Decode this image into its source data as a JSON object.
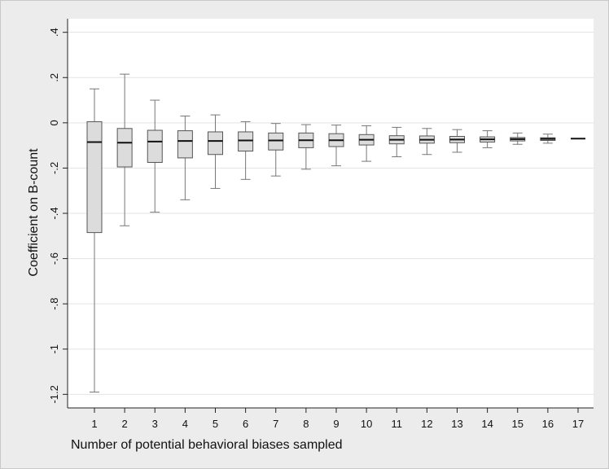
{
  "chart_data": {
    "type": "box",
    "xlabel": "Number of potential behavioral biases sampled",
    "ylabel": "Coefficient on B-count",
    "ylim": [
      -1.26,
      0.46
    ],
    "yticks": [
      {
        "value": 0.4,
        "label": ".4"
      },
      {
        "value": 0.2,
        "label": ".2"
      },
      {
        "value": 0,
        "label": "0"
      },
      {
        "value": -0.2,
        "label": "-.2"
      },
      {
        "value": -0.4,
        "label": "-.4"
      },
      {
        "value": -0.6,
        "label": "-.6"
      },
      {
        "value": -0.8,
        "label": "-.8"
      },
      {
        "value": -1,
        "label": "-1"
      },
      {
        "value": -1.2,
        "label": "-1.2"
      }
    ],
    "grid": true,
    "categories": [
      "1",
      "2",
      "3",
      "4",
      "5",
      "6",
      "7",
      "8",
      "9",
      "10",
      "11",
      "12",
      "13",
      "14",
      "15",
      "16",
      "17"
    ],
    "boxes": [
      {
        "x": "1",
        "whisker_low": -1.19,
        "q1": -0.485,
        "median": -0.085,
        "q3": 0.005,
        "whisker_high": 0.15
      },
      {
        "x": "2",
        "whisker_low": -0.455,
        "q1": -0.195,
        "median": -0.088,
        "q3": -0.025,
        "whisker_high": 0.215
      },
      {
        "x": "3",
        "whisker_low": -0.395,
        "q1": -0.175,
        "median": -0.083,
        "q3": -0.033,
        "whisker_high": 0.1
      },
      {
        "x": "4",
        "whisker_low": -0.34,
        "q1": -0.155,
        "median": -0.08,
        "q3": -0.035,
        "whisker_high": 0.03
      },
      {
        "x": "5",
        "whisker_low": -0.29,
        "q1": -0.14,
        "median": -0.08,
        "q3": -0.04,
        "whisker_high": 0.035
      },
      {
        "x": "6",
        "whisker_low": -0.25,
        "q1": -0.125,
        "median": -0.078,
        "q3": -0.04,
        "whisker_high": 0.005
      },
      {
        "x": "7",
        "whisker_low": -0.235,
        "q1": -0.12,
        "median": -0.078,
        "q3": -0.045,
        "whisker_high": -0.003
      },
      {
        "x": "8",
        "whisker_low": -0.205,
        "q1": -0.11,
        "median": -0.077,
        "q3": -0.045,
        "whisker_high": -0.008
      },
      {
        "x": "9",
        "whisker_low": -0.19,
        "q1": -0.105,
        "median": -0.077,
        "q3": -0.048,
        "whisker_high": -0.01
      },
      {
        "x": "10",
        "whisker_low": -0.17,
        "q1": -0.098,
        "median": -0.075,
        "q3": -0.052,
        "whisker_high": -0.013
      },
      {
        "x": "11",
        "whisker_low": -0.15,
        "q1": -0.093,
        "median": -0.075,
        "q3": -0.057,
        "whisker_high": -0.02
      },
      {
        "x": "12",
        "whisker_low": -0.14,
        "q1": -0.09,
        "median": -0.075,
        "q3": -0.058,
        "whisker_high": -0.025
      },
      {
        "x": "13",
        "whisker_low": -0.13,
        "q1": -0.088,
        "median": -0.074,
        "q3": -0.06,
        "whisker_high": -0.03
      },
      {
        "x": "14",
        "whisker_low": -0.11,
        "q1": -0.085,
        "median": -0.073,
        "q3": -0.062,
        "whisker_high": -0.035
      },
      {
        "x": "15",
        "whisker_low": -0.095,
        "q1": -0.08,
        "median": -0.072,
        "q3": -0.065,
        "whisker_high": -0.045
      },
      {
        "x": "16",
        "whisker_low": -0.09,
        "q1": -0.078,
        "median": -0.071,
        "q3": -0.066,
        "whisker_high": -0.05
      },
      {
        "x": "17",
        "whisker_low": -0.07,
        "q1": -0.07,
        "median": -0.07,
        "q3": -0.07,
        "whisker_high": -0.07
      }
    ],
    "colors": {
      "background": "#ececec",
      "plot_background": "#ffffff",
      "box_fill": "#dcdcdc",
      "box_stroke": "#555555",
      "median": "#111111",
      "whisker": "#777777",
      "grid": "#e3e3e3",
      "axis": "#222222"
    }
  }
}
